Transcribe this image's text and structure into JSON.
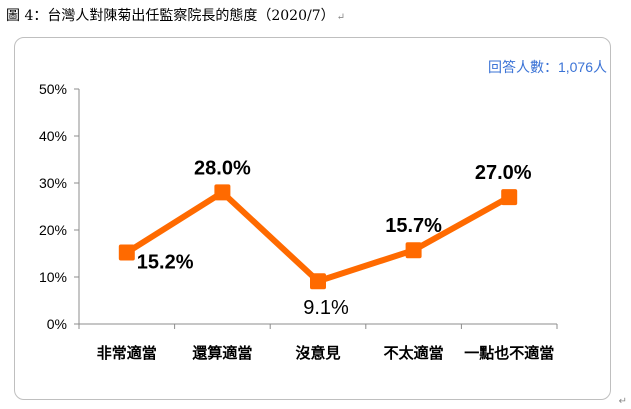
{
  "caption": "圖 4：台灣人對陳菊出任監察院長的態度（2020/7）",
  "caption_mark": "↵",
  "note": "回答人數：1,076人",
  "corner_mark": "↵",
  "chart_data": {
    "type": "line",
    "categories": [
      "非常適當",
      "還算適當",
      "沒意見",
      "不太適當",
      "一點也不適當"
    ],
    "series": [
      {
        "values": [
          15.2,
          28.0,
          9.1,
          15.7,
          27.0
        ],
        "color": "#ff6a00"
      }
    ],
    "data_labels": [
      "15.2%",
      "28.0%",
      "9.1%",
      "15.7%",
      "27.0%"
    ],
    "ylim": [
      0,
      50
    ],
    "yticks": [
      0,
      10,
      20,
      30,
      40,
      50
    ],
    "ytick_labels": [
      "0%",
      "10%",
      "20%",
      "30%",
      "40%",
      "50%"
    ],
    "grid": false
  }
}
